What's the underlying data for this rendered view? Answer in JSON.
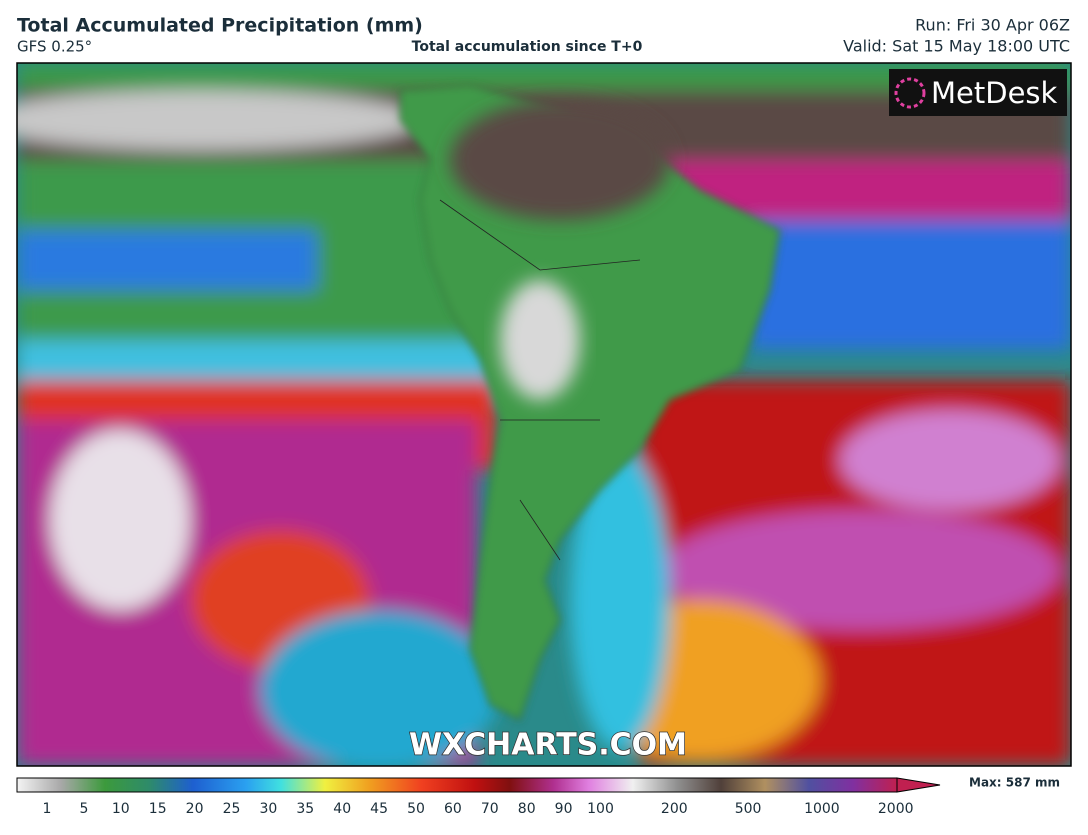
{
  "header": {
    "title": "Total Accumulated Precipitation (mm)",
    "model": "GFS 0.25°",
    "subtitle": "Total accumulation since T+0",
    "run": "Run: Fri 30 Apr 06Z",
    "valid": "Valid: Sat 15 May 18:00 UTC"
  },
  "logo": "MetDesk",
  "watermark": "WXCHARTS.COM",
  "legend": {
    "ticks": [
      1,
      5,
      10,
      15,
      20,
      25,
      30,
      35,
      40,
      45,
      50,
      60,
      70,
      80,
      90,
      100,
      200,
      500,
      1000,
      2000
    ],
    "max": "Max: 587 mm"
  }
}
